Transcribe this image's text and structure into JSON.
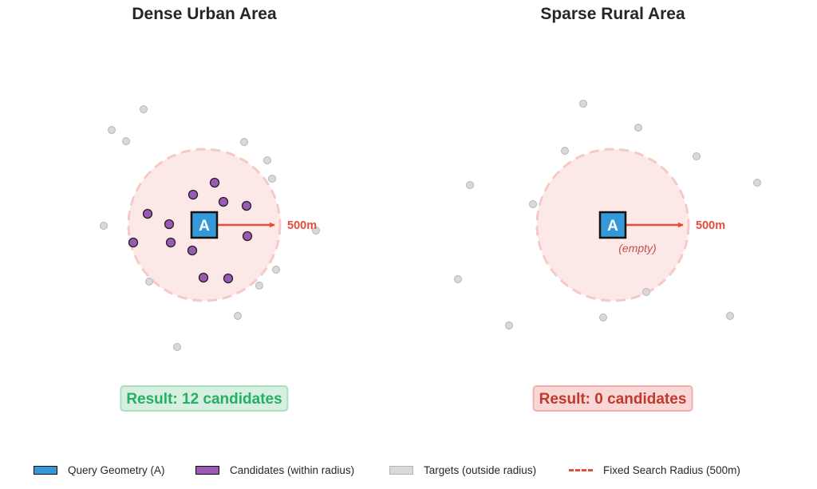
{
  "panels": [
    {
      "title": "Dense Urban Area",
      "query_label": "A",
      "radius_label": "500m",
      "empty_note": "",
      "result": "Result: 12 candidates",
      "result_color": "#27ae60"
    },
    {
      "title": "Sparse Rural Area",
      "query_label": "A",
      "radius_label": "500m",
      "empty_note": "(empty)",
      "result": "Result: 0 candidates",
      "result_color": "#c0392b"
    }
  ],
  "legend": {
    "query": "Query Geometry (A)",
    "candidates": "Candidates (within radius)",
    "targets": "Targets (outside radius)",
    "radius": "Fixed Search Radius (500m)"
  },
  "colors": {
    "query": "#3498db",
    "candidate": "#9b59b6",
    "target": "#d9d9d9",
    "radius": "#e74c3c",
    "radius_fill": "#fde8e8"
  }
}
